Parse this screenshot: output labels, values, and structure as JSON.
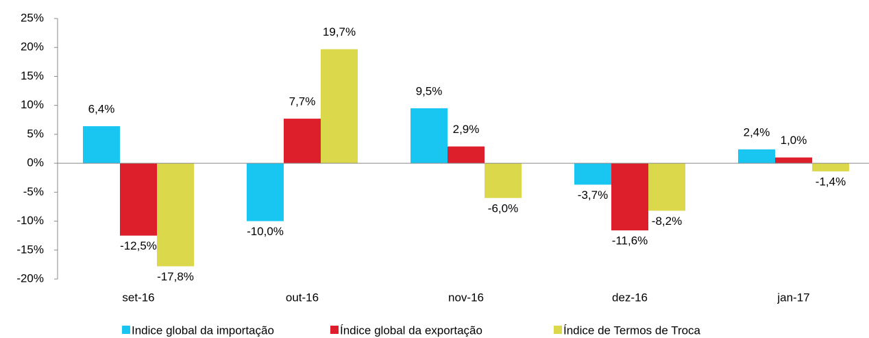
{
  "chart_data": {
    "type": "bar",
    "categories": [
      "set-16",
      "out-16",
      "nov-16",
      "dez-16",
      "jan-17"
    ],
    "series": [
      {
        "name": "Indice global da importação",
        "color": "#19c6f2",
        "values": [
          6.4,
          -10.0,
          9.5,
          -3.7,
          2.4
        ],
        "value_labels": [
          "6,4%",
          "-10,0%",
          "9,5%",
          "-3,7%",
          "2,4%"
        ]
      },
      {
        "name": "Índice global da exportação",
        "color": "#dd1f2b",
        "values": [
          -12.5,
          7.7,
          2.9,
          -11.6,
          1.0
        ],
        "value_labels": [
          "-12,5%",
          "7,7%",
          "2,9%",
          "-11,6%",
          "1,0%"
        ]
      },
      {
        "name": "Índice de Termos de Troca",
        "color": "#dcd84b",
        "values": [
          -17.8,
          19.7,
          -6.0,
          -8.2,
          -1.4
        ],
        "value_labels": [
          "-17,8%",
          "19,7%",
          "-6,0%",
          "-8,2%",
          "-1,4%"
        ]
      }
    ],
    "ylim": [
      -20,
      25
    ],
    "yticks": [
      {
        "value": -20,
        "label": "-20%"
      },
      {
        "value": -15,
        "label": "-15%"
      },
      {
        "value": -10,
        "label": "-10%"
      },
      {
        "value": -5,
        "label": "-5%"
      },
      {
        "value": 0,
        "label": "0%"
      },
      {
        "value": 5,
        "label": "5%"
      },
      {
        "value": 10,
        "label": "10%"
      },
      {
        "value": 15,
        "label": "15%"
      },
      {
        "value": 20,
        "label": "20%"
      },
      {
        "value": 25,
        "label": "25%"
      }
    ],
    "grid": false,
    "legend": "bottom"
  }
}
